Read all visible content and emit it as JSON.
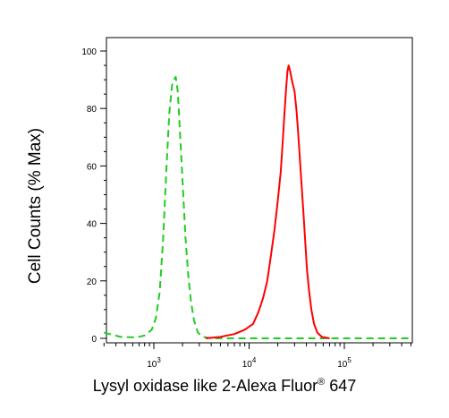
{
  "chart_data": {
    "type": "line",
    "title": "",
    "ylabel": "Cell Counts (% Max)",
    "xlabel": {
      "main": "Lysyl oxidase like 2-Alexa Fluor",
      "superscript": "®",
      "suffix": " 647"
    },
    "x_scale": "log",
    "xlim": [
      300,
      500000
    ],
    "ylim": [
      0,
      100
    ],
    "y_ticks": [
      {
        "value": 0,
        "label": "0"
      },
      {
        "value": 20,
        "label": "20"
      },
      {
        "value": 40,
        "label": "40"
      },
      {
        "value": 60,
        "label": "60"
      },
      {
        "value": 80,
        "label": "80"
      },
      {
        "value": 100,
        "label": "100"
      }
    ],
    "x_ticks": [
      {
        "value": 1000,
        "base": "10",
        "exp": "3"
      },
      {
        "value": 10000,
        "base": "10",
        "exp": "4"
      },
      {
        "value": 100000,
        "base": "10",
        "exp": "5"
      }
    ],
    "grid": false,
    "legend": "none",
    "series": [
      {
        "color": "#22cc22",
        "style": "dashed",
        "points": [
          [
            300,
            2
          ],
          [
            450,
            0.5
          ],
          [
            650,
            0.3
          ],
          [
            800,
            1
          ],
          [
            950,
            3
          ],
          [
            1050,
            7
          ],
          [
            1150,
            16
          ],
          [
            1250,
            34
          ],
          [
            1350,
            58
          ],
          [
            1450,
            78
          ],
          [
            1550,
            88
          ],
          [
            1620,
            90
          ],
          [
            1700,
            91
          ],
          [
            1780,
            86
          ],
          [
            1850,
            76
          ],
          [
            1950,
            62
          ],
          [
            2050,
            48
          ],
          [
            2150,
            35
          ],
          [
            2300,
            22
          ],
          [
            2450,
            13
          ],
          [
            2650,
            6
          ],
          [
            2900,
            2
          ],
          [
            3300,
            0.5
          ],
          [
            4000,
            0
          ],
          [
            10000,
            0
          ],
          [
            30000,
            0
          ],
          [
            100000,
            0
          ],
          [
            500000,
            0
          ]
        ]
      },
      {
        "color": "#ff0000",
        "style": "solid",
        "points": [
          [
            3500,
            0
          ],
          [
            5000,
            0.5
          ],
          [
            7000,
            1.5
          ],
          [
            9000,
            3
          ],
          [
            11000,
            5
          ],
          [
            12500,
            9
          ],
          [
            14000,
            14
          ],
          [
            15500,
            20
          ],
          [
            17000,
            29
          ],
          [
            18500,
            38
          ],
          [
            20000,
            48
          ],
          [
            21500,
            58
          ],
          [
            22500,
            68
          ],
          [
            23500,
            78
          ],
          [
            24500,
            87
          ],
          [
            25300,
            93
          ],
          [
            26000,
            95
          ],
          [
            27000,
            93
          ],
          [
            28500,
            89
          ],
          [
            30000,
            86
          ],
          [
            31500,
            79
          ],
          [
            33000,
            70
          ],
          [
            34500,
            60
          ],
          [
            36000,
            51
          ],
          [
            37500,
            42
          ],
          [
            39000,
            33
          ],
          [
            40500,
            24
          ],
          [
            42500,
            17
          ],
          [
            45000,
            10
          ],
          [
            48000,
            5
          ],
          [
            52000,
            2
          ],
          [
            58000,
            0.5
          ],
          [
            70000,
            0
          ]
        ]
      }
    ]
  }
}
